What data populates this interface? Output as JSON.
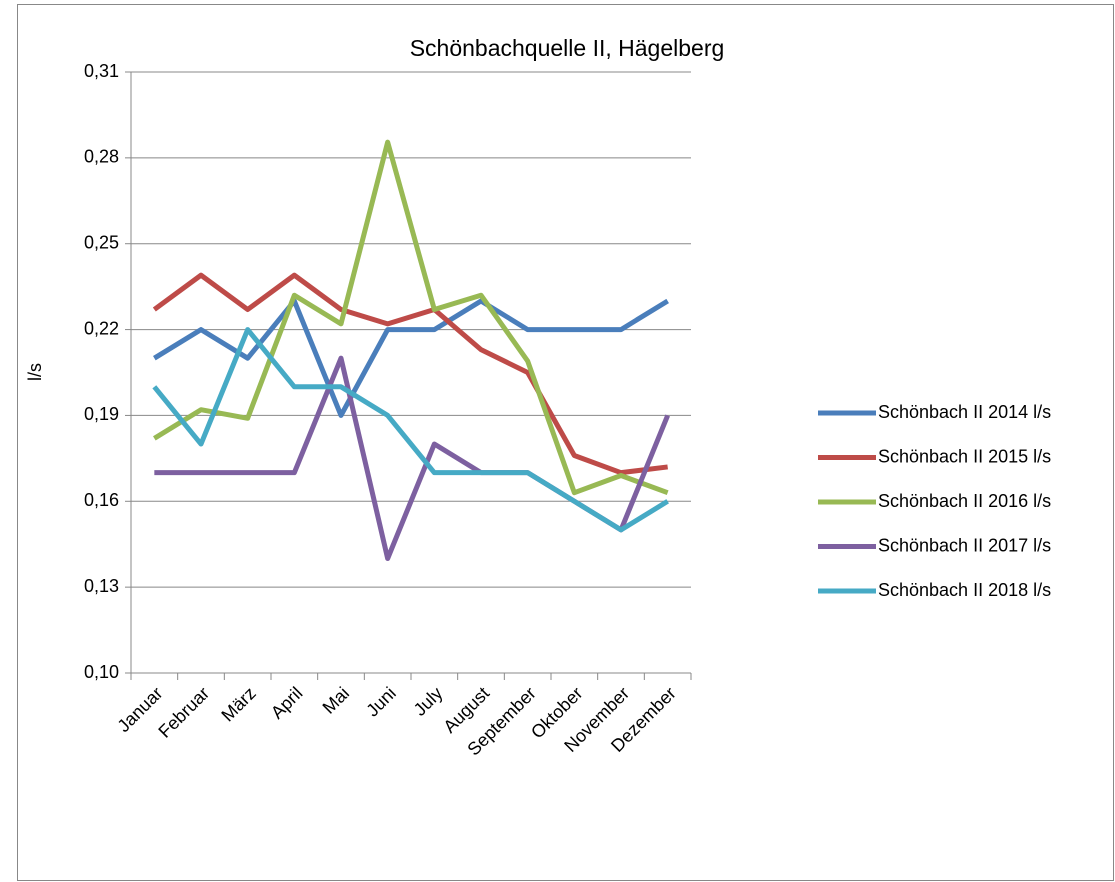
{
  "chart_data": {
    "type": "line",
    "title": "Schönbachquelle II, Hägelberg",
    "y_label": "l/s",
    "categories": [
      "Januar",
      "Februar",
      "März",
      "April",
      "Mai",
      "Juni",
      "July",
      "August",
      "September",
      "Oktober",
      "November",
      "Dezember"
    ],
    "series": [
      {
        "name": "Schönbach II 2014 l/s",
        "color": "#4a7ebb",
        "values": [
          0.21,
          0.22,
          0.21,
          0.23,
          0.19,
          0.22,
          0.22,
          0.23,
          0.22,
          0.22,
          0.22,
          0.23
        ]
      },
      {
        "name": "Schönbach II 2015 l/s",
        "color": "#be4b48",
        "values": [
          0.227,
          0.239,
          0.227,
          0.239,
          0.227,
          0.222,
          0.227,
          0.213,
          0.205,
          0.176,
          0.17,
          0.172
        ]
      },
      {
        "name": "Schönbach II 2016 l/s",
        "color": "#98b954",
        "values": [
          0.182,
          0.192,
          0.189,
          0.232,
          0.222,
          0.2855,
          0.227,
          0.232,
          0.209,
          0.163,
          0.169,
          0.163
        ]
      },
      {
        "name": "Schönbach II 2017 l/s",
        "color": "#7d60a0",
        "values": [
          0.17,
          0.17,
          0.17,
          0.17,
          0.21,
          0.14,
          0.18,
          0.17,
          0.17,
          0.16,
          0.15,
          0.19
        ]
      },
      {
        "name": "Schönbach II 2018 l/s",
        "color": "#46aac5",
        "values": [
          0.2,
          0.18,
          0.22,
          0.2,
          0.2,
          0.19,
          0.17,
          0.17,
          0.17,
          0.16,
          0.15,
          0.16
        ]
      }
    ],
    "ylim": [
      0.1,
      0.31
    ],
    "yticks": [
      {
        "value": 0.1,
        "label": "0,10"
      },
      {
        "value": 0.13,
        "label": "0,13"
      },
      {
        "value": 0.16,
        "label": "0,16"
      },
      {
        "value": 0.19,
        "label": "0,19"
      },
      {
        "value": 0.22,
        "label": "0,22"
      },
      {
        "value": 0.25,
        "label": "0,25"
      },
      {
        "value": 0.28,
        "label": "0,28"
      },
      {
        "value": 0.31,
        "label": "0,31"
      }
    ],
    "grid": true,
    "legend": "right"
  }
}
